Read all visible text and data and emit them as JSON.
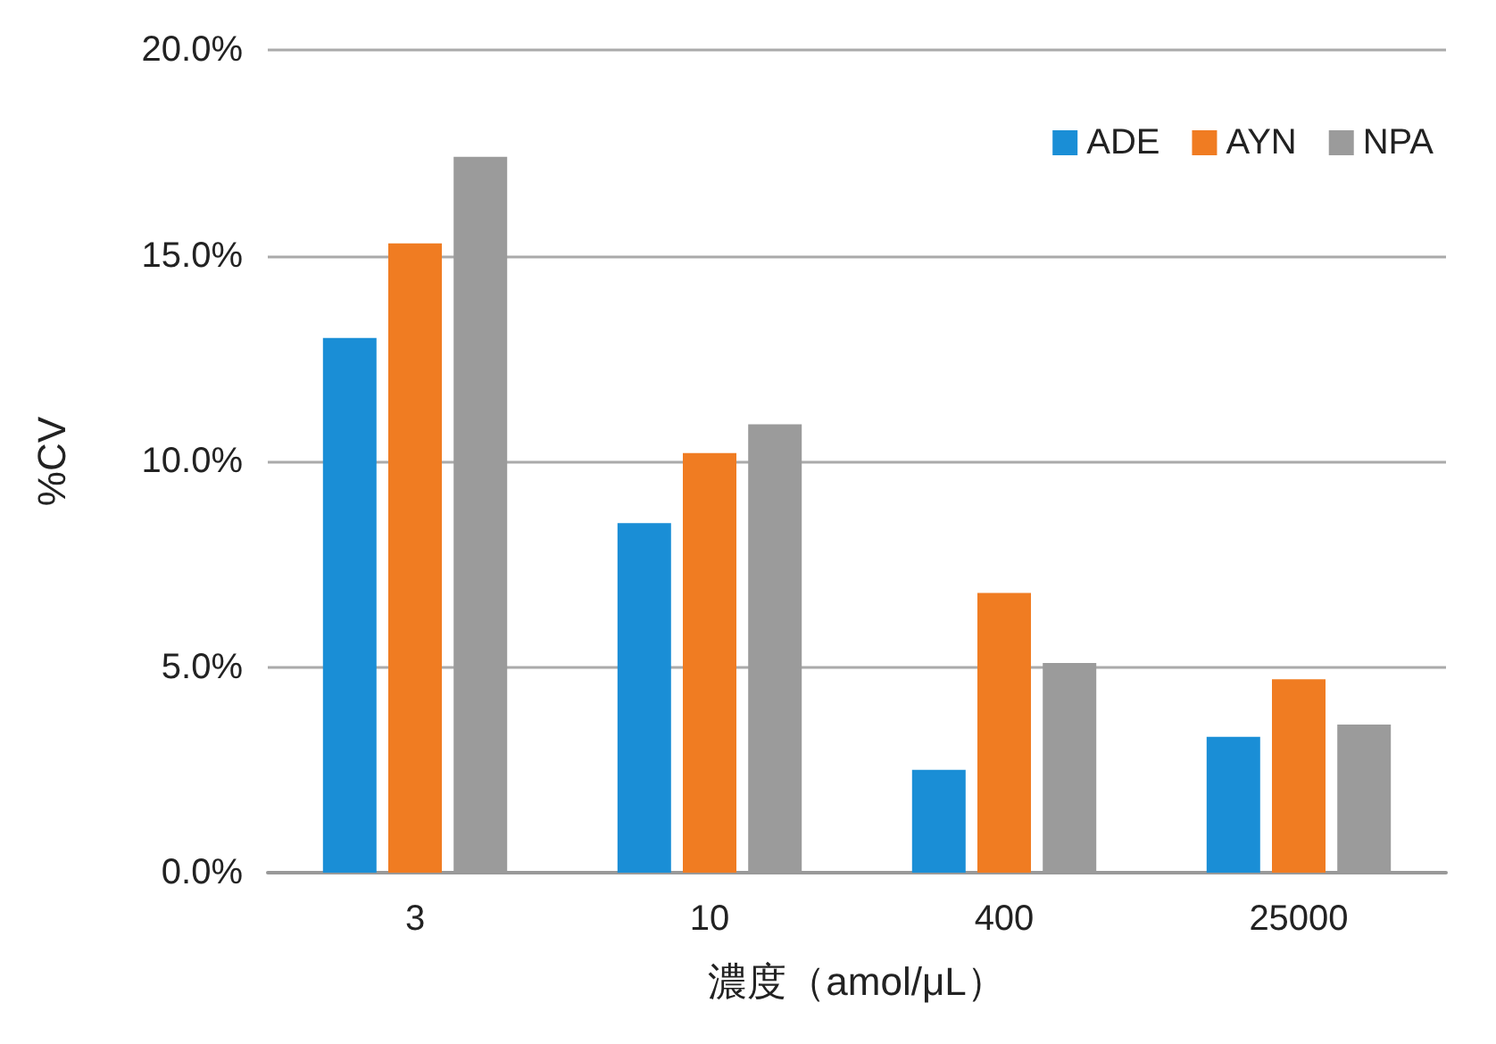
{
  "chart_data": {
    "type": "bar",
    "xlabel": "濃度（amol/μL）",
    "ylabel": "%CV",
    "categories": [
      "3",
      "10",
      "400",
      "25000"
    ],
    "series": [
      {
        "name": "ADE",
        "color": "#1a8ed6",
        "values": [
          13.0,
          8.5,
          2.5,
          3.3
        ]
      },
      {
        "name": "AYN",
        "color": "#f07c22",
        "values": [
          15.3,
          10.2,
          6.8,
          4.7
        ]
      },
      {
        "name": "NPA",
        "color": "#9b9b9b",
        "values": [
          17.4,
          10.9,
          5.1,
          3.6
        ]
      }
    ],
    "ylim": [
      0,
      20
    ],
    "yticks": [
      {
        "value": 0,
        "label": "0.0%"
      },
      {
        "value": 5,
        "label": "5.0%"
      },
      {
        "value": 10,
        "label": "10.0%"
      },
      {
        "value": 15,
        "label": "15.0%"
      },
      {
        "value": 20,
        "label": "20.0%"
      }
    ],
    "grid": "y",
    "legend": "top right"
  }
}
